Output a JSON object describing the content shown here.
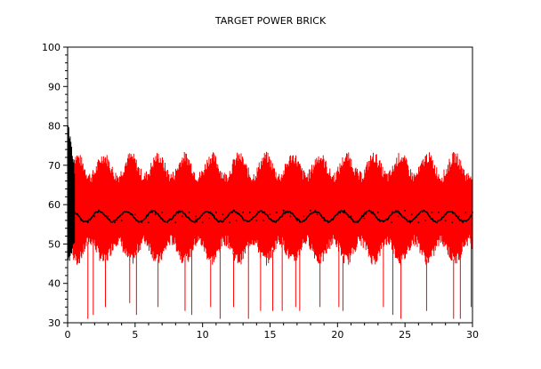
{
  "chart_data": {
    "type": "line",
    "title": "TARGET POWER BRICK",
    "xlabel": "",
    "ylabel": "",
    "xlim": [
      0,
      30
    ],
    "ylim": [
      30,
      100
    ],
    "x_ticks": [
      0,
      5,
      10,
      15,
      20,
      25,
      30
    ],
    "y_ticks": [
      30,
      40,
      50,
      60,
      70,
      80,
      90,
      100
    ],
    "grid": false,
    "legend": "none",
    "series": [
      {
        "style": "dense-oscillation-band",
        "color": "#ff0000",
        "envelope_upper_base": 69.5,
        "envelope_upper_amplitude": 2.5,
        "envelope_lower_base": 48.5,
        "envelope_lower_amplitude": 2.5,
        "period": 2.0,
        "downward_spikes": [
          {
            "x": 1.5,
            "y": 31
          },
          {
            "x": 1.9,
            "y": 32
          },
          {
            "x": 2.8,
            "y": 34
          },
          {
            "x": 4.6,
            "y": 35
          },
          {
            "x": 5.1,
            "y": 32
          },
          {
            "x": 6.7,
            "y": 34
          },
          {
            "x": 8.7,
            "y": 33
          },
          {
            "x": 9.2,
            "y": 32
          },
          {
            "x": 10.6,
            "y": 34
          },
          {
            "x": 11.3,
            "y": 31
          },
          {
            "x": 12.3,
            "y": 34
          },
          {
            "x": 13.4,
            "y": 31
          },
          {
            "x": 14.3,
            "y": 33
          },
          {
            "x": 15.2,
            "y": 33
          },
          {
            "x": 15.9,
            "y": 33
          },
          {
            "x": 16.9,
            "y": 34
          },
          {
            "x": 17.2,
            "y": 33
          },
          {
            "x": 18.7,
            "y": 34
          },
          {
            "x": 20.1,
            "y": 34
          },
          {
            "x": 20.4,
            "y": 33
          },
          {
            "x": 23.4,
            "y": 34
          },
          {
            "x": 24.1,
            "y": 32
          },
          {
            "x": 24.7,
            "y": 31
          },
          {
            "x": 26.6,
            "y": 33
          },
          {
            "x": 28.6,
            "y": 31
          },
          {
            "x": 29.1,
            "y": 31
          },
          {
            "x": 29.9,
            "y": 34
          }
        ]
      },
      {
        "style": "line",
        "color": "#000000",
        "period": 2.0,
        "points": [
          {
            "x": 0.5,
            "y": 58.0
          },
          {
            "x": 1.0,
            "y": 56.0
          },
          {
            "x": 1.5,
            "y": 55.5
          },
          {
            "x": 2.0,
            "y": 57.0
          },
          {
            "x": 2.5,
            "y": 58.0
          },
          {
            "x": 3.0,
            "y": 57.0
          },
          {
            "x": 3.5,
            "y": 55.5
          },
          {
            "x": 4.0,
            "y": 56.0
          },
          {
            "x": 4.5,
            "y": 58.0
          },
          {
            "x": 5.0,
            "y": 57.5
          },
          {
            "x": 5.5,
            "y": 55.5
          },
          {
            "x": 6.0,
            "y": 55.5
          },
          {
            "x": 6.5,
            "y": 57.5
          },
          {
            "x": 7.0,
            "y": 58.0
          },
          {
            "x": 7.5,
            "y": 56.0
          },
          {
            "x": 8.0,
            "y": 55.5
          },
          {
            "x": 8.5,
            "y": 57.0
          },
          {
            "x": 9.0,
            "y": 58.0
          },
          {
            "x": 9.5,
            "y": 57.0
          },
          {
            "x": 10.0,
            "y": 55.5
          },
          {
            "x": 10.5,
            "y": 56.5
          },
          {
            "x": 11.0,
            "y": 58.0
          },
          {
            "x": 11.5,
            "y": 57.5
          },
          {
            "x": 12.0,
            "y": 55.5
          },
          {
            "x": 12.5,
            "y": 56.0
          },
          {
            "x": 13.0,
            "y": 58.0
          },
          {
            "x": 13.5,
            "y": 58.0
          },
          {
            "x": 14.0,
            "y": 56.0
          },
          {
            "x": 14.5,
            "y": 56.0
          },
          {
            "x": 15.0,
            "y": 57.5
          },
          {
            "x": 15.5,
            "y": 58.0
          },
          {
            "x": 16.0,
            "y": 58.5
          },
          {
            "x": 16.5,
            "y": 57.0
          },
          {
            "x": 17.0,
            "y": 56.0
          },
          {
            "x": 17.5,
            "y": 57.0
          },
          {
            "x": 18.0,
            "y": 58.5
          },
          {
            "x": 18.5,
            "y": 57.5
          },
          {
            "x": 19.0,
            "y": 56.0
          },
          {
            "x": 19.5,
            "y": 56.0
          },
          {
            "x": 20.0,
            "y": 57.5
          },
          {
            "x": 20.5,
            "y": 58.5
          },
          {
            "x": 21.0,
            "y": 57.0
          },
          {
            "x": 21.5,
            "y": 55.5
          },
          {
            "x": 22.0,
            "y": 56.5
          },
          {
            "x": 22.5,
            "y": 58.0
          },
          {
            "x": 23.0,
            "y": 58.0
          },
          {
            "x": 23.5,
            "y": 56.0
          },
          {
            "x": 24.0,
            "y": 55.5
          },
          {
            "x": 24.5,
            "y": 57.0
          },
          {
            "x": 25.0,
            "y": 58.5
          },
          {
            "x": 25.5,
            "y": 57.5
          },
          {
            "x": 26.0,
            "y": 55.5
          },
          {
            "x": 26.5,
            "y": 56.0
          },
          {
            "x": 27.0,
            "y": 58.0
          },
          {
            "x": 27.5,
            "y": 58.0
          },
          {
            "x": 28.0,
            "y": 56.0
          },
          {
            "x": 28.5,
            "y": 55.5
          },
          {
            "x": 29.0,
            "y": 57.0
          },
          {
            "x": 29.5,
            "y": 58.0
          },
          {
            "x": 30.0,
            "y": 58.0
          }
        ]
      }
    ]
  }
}
